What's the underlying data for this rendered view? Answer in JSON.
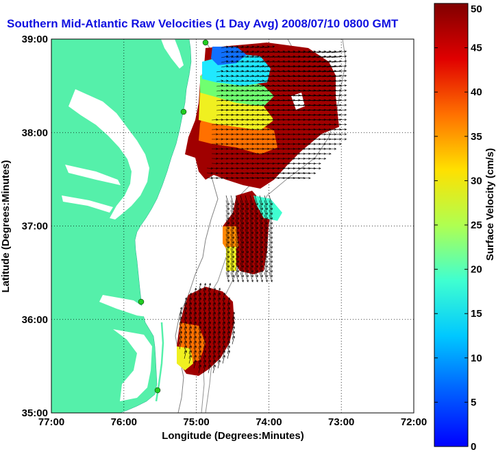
{
  "chart_data": {
    "type": "heatmap",
    "title": "Southern Mid-Atlantic Raw Velocities (1 Day Avg) 2008/07/10 0800 GMT",
    "xlabel": "Longitude (Degrees:Minutes)",
    "ylabel": "Latitude (Degrees:Minutes)",
    "x_ticks": [
      {
        "value": -77,
        "label": "77:00"
      },
      {
        "value": -76,
        "label": "76:00"
      },
      {
        "value": -75,
        "label": "75:00"
      },
      {
        "value": -74,
        "label": "74:00"
      },
      {
        "value": -73,
        "label": "73:00"
      },
      {
        "value": -72,
        "label": "72:00"
      }
    ],
    "y_ticks": [
      {
        "value": 35,
        "label": "35:00"
      },
      {
        "value": 36,
        "label": "36:00"
      },
      {
        "value": 37,
        "label": "37:00"
      },
      {
        "value": 38,
        "label": "38:00"
      },
      {
        "value": 39,
        "label": "39:00"
      }
    ],
    "xlim": [
      -77,
      -72
    ],
    "ylim": [
      35,
      39
    ],
    "grid": true,
    "colorbar": {
      "label": "Surface Velocity (cm/s)",
      "range": [
        0,
        50
      ],
      "ticks": [
        "0",
        "5",
        "10",
        "15",
        "20",
        "25",
        "30",
        "35",
        "40",
        "45",
        "50"
      ],
      "placement": "right"
    },
    "colors": {
      "land": "#55f0aa",
      "water": "#ffffff",
      "title": "#1010e0",
      "station": "#22cc22"
    },
    "velocity_regions": [
      {
        "name": "northern-field",
        "lon": [
          -75.1,
          -73.1
        ],
        "lat": [
          37.5,
          38.95
        ],
        "speed_range": [
          5,
          50
        ]
      },
      {
        "name": "central-field",
        "lon": [
          -74.6,
          -73.9
        ],
        "lat": [
          36.5,
          37.4
        ],
        "speed_range": [
          20,
          50
        ]
      },
      {
        "name": "southern-field",
        "lon": [
          -75.3,
          -74.5
        ],
        "lat": [
          35.4,
          36.4
        ],
        "speed_range": [
          25,
          50
        ]
      }
    ]
  }
}
